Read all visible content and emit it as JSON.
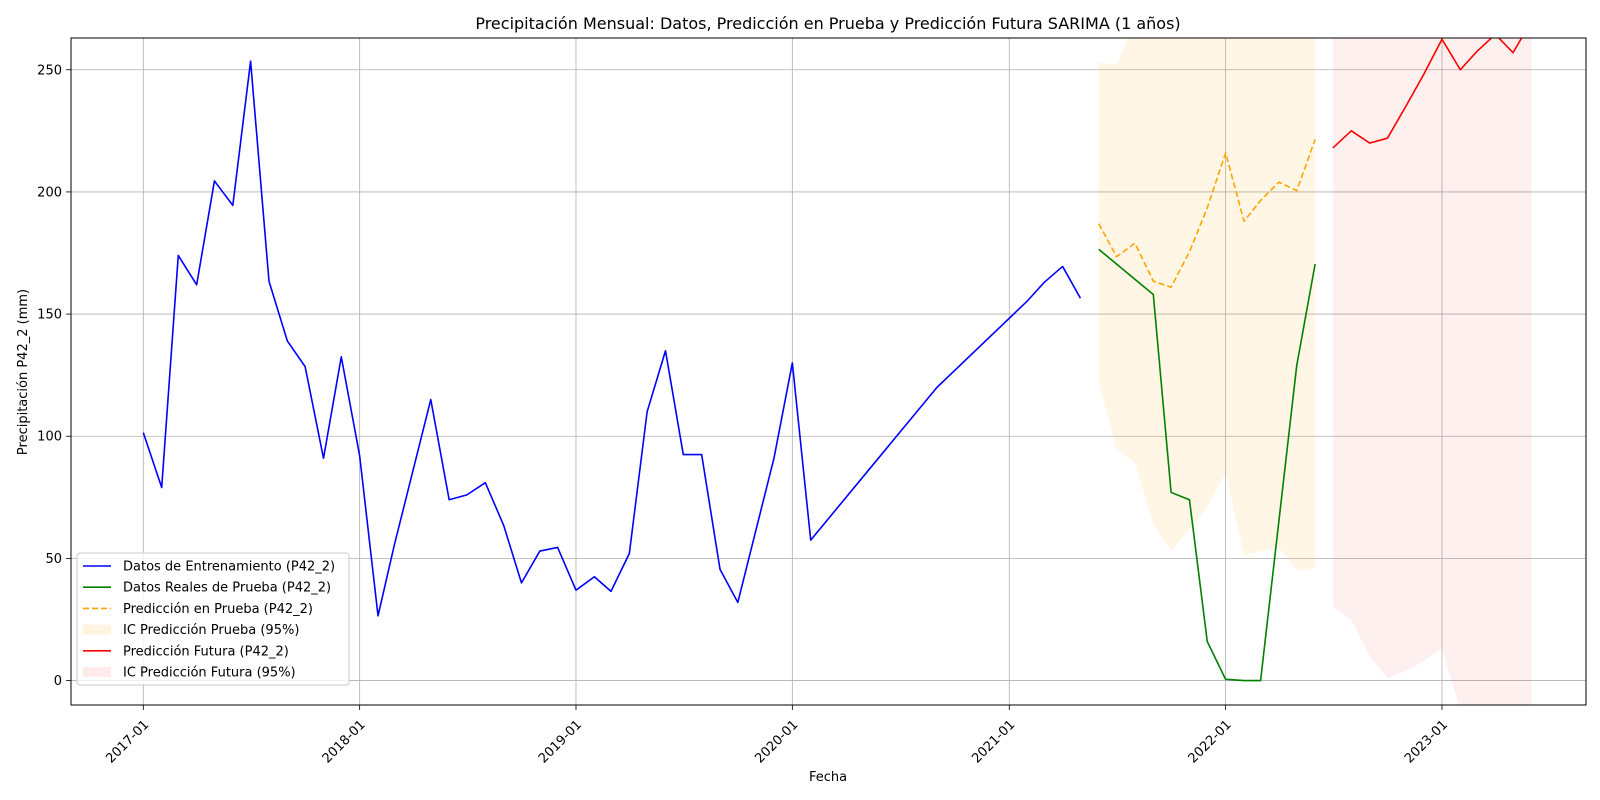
{
  "chart_data": {
    "type": "line",
    "title": "Precipitación Mensual: Datos, Predicción en Prueba y Predicción Futura SARIMA (1 años)",
    "xlabel": "Fecha",
    "ylabel": "Precipitación P42_2 (mm)",
    "xlim": [
      "2016-09-01",
      "2023-09-01"
    ],
    "ylim": [
      -10,
      263
    ],
    "x_ticks": [
      "2017-01",
      "2018-01",
      "2019-01",
      "2020-01",
      "2021-01",
      "2022-01",
      "2023-01"
    ],
    "y_ticks": [
      0,
      50,
      100,
      150,
      200,
      250
    ],
    "grid": true,
    "legend_position": "lower-left",
    "series": [
      {
        "name": "Datos de Entrenamiento (P42_2)",
        "kind": "line",
        "color": "#0000ff",
        "dash": "solid",
        "points": [
          [
            "2017-01-01",
            101.5
          ],
          [
            "2017-02-01",
            79
          ],
          [
            "2017-03-01",
            174
          ],
          [
            "2017-04-01",
            162
          ],
          [
            "2017-05-01",
            204.5
          ],
          [
            "2017-06-01",
            194.5
          ],
          [
            "2017-07-01",
            253.5
          ],
          [
            "2017-08-01",
            163.5
          ],
          [
            "2017-09-01",
            139
          ],
          [
            "2017-10-01",
            128.5
          ],
          [
            "2017-11-01",
            91
          ],
          [
            "2017-12-01",
            132.5
          ],
          [
            "2018-01-01",
            92
          ],
          [
            "2018-02-01",
            26.5
          ],
          [
            "2018-03-01",
            56
          ],
          [
            "2018-05-01",
            115
          ],
          [
            "2018-06-01",
            74
          ],
          [
            "2018-07-01",
            76
          ],
          [
            "2018-08-01",
            81
          ],
          [
            "2018-09-01",
            63.5
          ],
          [
            "2018-10-01",
            40
          ],
          [
            "2018-11-01",
            53
          ],
          [
            "2018-12-01",
            54.5
          ],
          [
            "2019-01-01",
            37
          ],
          [
            "2019-02-01",
            42.5
          ],
          [
            "2019-03-01",
            36.5
          ],
          [
            "2019-04-01",
            52
          ],
          [
            "2019-05-01",
            110
          ],
          [
            "2019-06-01",
            135
          ],
          [
            "2019-07-01",
            92.5
          ],
          [
            "2019-08-01",
            92.5
          ],
          [
            "2019-09-01",
            45.5
          ],
          [
            "2019-10-01",
            32
          ],
          [
            "2019-12-01",
            91
          ],
          [
            "2020-01-01",
            130
          ],
          [
            "2020-02-01",
            57.5
          ],
          [
            "2020-09-01",
            120
          ],
          [
            "2021-02-01",
            155.5
          ],
          [
            "2021-03-01",
            163
          ],
          [
            "2021-04-01",
            169.5
          ],
          [
            "2021-05-01",
            156.5
          ]
        ]
      },
      {
        "name": "Datos Reales de Prueba (P42_2)",
        "kind": "line",
        "color": "#008000",
        "dash": "solid",
        "points": [
          [
            "2021-06-01",
            176.5
          ],
          [
            "2021-09-01",
            158
          ],
          [
            "2021-10-01",
            77
          ],
          [
            "2021-11-01",
            74
          ],
          [
            "2021-12-01",
            16
          ],
          [
            "2022-01-01",
            0.5
          ],
          [
            "2022-02-01",
            0
          ],
          [
            "2022-03-01",
            0
          ],
          [
            "2022-05-01",
            129
          ],
          [
            "2022-06-01",
            170.5
          ]
        ]
      },
      {
        "name": "Predicción en Prueba (P42_2)",
        "kind": "line",
        "color": "#ffa500",
        "dash": "dashed",
        "points": [
          [
            "2021-06-01",
            187
          ],
          [
            "2021-07-01",
            173.5
          ],
          [
            "2021-08-01",
            179
          ],
          [
            "2021-09-01",
            163.5
          ],
          [
            "2021-10-01",
            161
          ],
          [
            "2021-11-01",
            175.5
          ],
          [
            "2021-12-01",
            193.5
          ],
          [
            "2022-01-01",
            216
          ],
          [
            "2022-02-01",
            188
          ],
          [
            "2022-03-01",
            196.5
          ],
          [
            "2022-04-01",
            204
          ],
          [
            "2022-05-01",
            200.5
          ],
          [
            "2022-06-01",
            221.5
          ]
        ]
      },
      {
        "name": "IC Predicción Prueba (95%)",
        "kind": "band",
        "color": "#ffa500",
        "opacity": 0.1,
        "x": [
          "2021-06-01",
          "2021-07-01",
          "2021-08-01",
          "2021-09-01",
          "2021-10-01",
          "2021-11-01",
          "2021-12-01",
          "2022-01-01",
          "2022-02-01",
          "2022-03-01",
          "2022-04-01",
          "2022-05-01",
          "2022-06-01"
        ],
        "lower": [
          122,
          95,
          89,
          64,
          53,
          62,
          71,
          85,
          51,
          53,
          54,
          45,
          46
        ],
        "upper": [
          253,
          252,
          270,
          270,
          270,
          270,
          270,
          270,
          270,
          270,
          270,
          270,
          270
        ]
      },
      {
        "name": "Predicción Futura (P42_2)",
        "kind": "line",
        "color": "#ff0000",
        "dash": "solid",
        "points": [
          [
            "2022-07-01",
            218
          ],
          [
            "2022-08-01",
            225
          ],
          [
            "2022-09-01",
            220
          ],
          [
            "2022-10-01",
            222
          ],
          [
            "2022-11-01",
            235
          ],
          [
            "2022-12-01",
            248
          ],
          [
            "2023-01-01",
            262.5
          ],
          [
            "2023-02-01",
            250
          ],
          [
            "2023-03-01",
            257.5
          ],
          [
            "2023-04-01",
            264.5
          ],
          [
            "2023-05-01",
            257
          ],
          [
            "2023-06-01",
            270
          ]
        ]
      },
      {
        "name": "IC Predicción Futura (95%)",
        "kind": "band",
        "color": "#ff0000",
        "opacity": 0.06,
        "x": [
          "2022-07-01",
          "2022-08-01",
          "2022-09-01",
          "2022-10-01",
          "2022-11-01",
          "2022-12-01",
          "2023-01-01",
          "2023-02-01",
          "2023-03-01",
          "2023-04-01",
          "2023-05-01",
          "2023-06-01"
        ],
        "lower": [
          30,
          25,
          10,
          1,
          4,
          8,
          13,
          -12,
          -20,
          -20,
          -20,
          -20
        ],
        "upper": [
          270,
          270,
          270,
          270,
          270,
          270,
          270,
          270,
          270,
          270,
          270,
          270
        ]
      }
    ],
    "legend": [
      {
        "label": "Datos de Entrenamiento (P42_2)",
        "symbol": "line",
        "color": "#0000ff",
        "dash": "solid"
      },
      {
        "label": "Datos Reales de Prueba (P42_2)",
        "symbol": "line",
        "color": "#008000",
        "dash": "solid"
      },
      {
        "label": "Predicción en Prueba (P42_2)",
        "symbol": "line",
        "color": "#ffa500",
        "dash": "dashed"
      },
      {
        "label": "IC Predicción Prueba (95%)",
        "symbol": "patch",
        "color": "#ffa500",
        "opacity": 0.12
      },
      {
        "label": "Predicción Futura (P42_2)",
        "symbol": "line",
        "color": "#ff0000",
        "dash": "solid"
      },
      {
        "label": "IC Predicción Futura (95%)",
        "symbol": "patch",
        "color": "#ff0000",
        "opacity": 0.08
      }
    ]
  }
}
